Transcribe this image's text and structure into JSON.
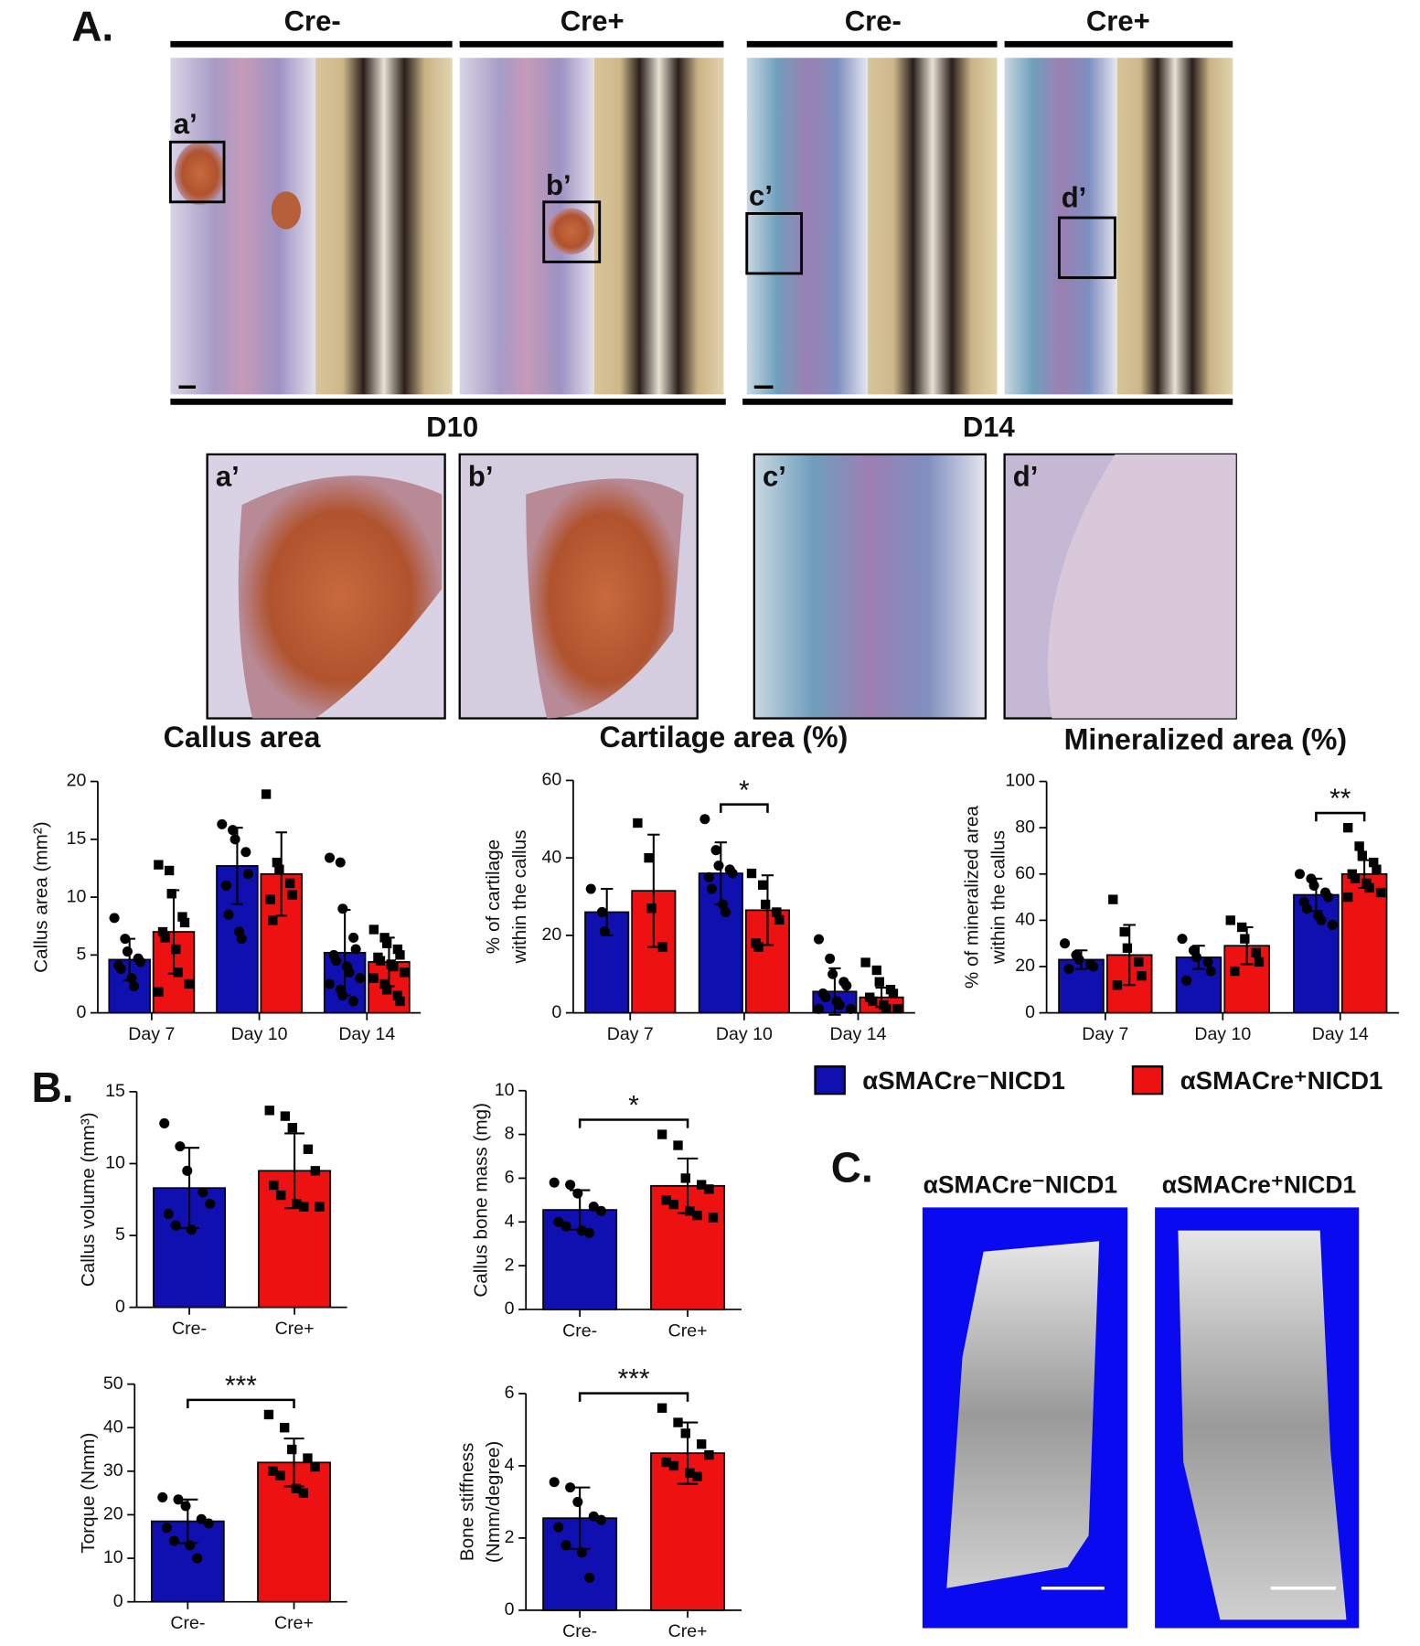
{
  "figure": {
    "panel_labels": [
      "A.",
      "B.",
      "C."
    ],
    "group_headers": [
      "Cre-",
      "Cre+",
      "Cre-",
      "Cre+"
    ],
    "timepoints": [
      "D10",
      "D14"
    ],
    "box_labels": [
      "a’",
      "b’",
      "c’",
      "d’"
    ],
    "legend": [
      {
        "name": "αSMACre⁻NICD1",
        "color": "#1010b0"
      },
      {
        "name": "αSMACre⁺NICD1",
        "color": "#ee1111"
      }
    ]
  },
  "chart_data": [
    {
      "type": "bar",
      "title": "Callus area",
      "ylabel": "Callus area (mm²)",
      "categories": [
        "Day 7",
        "Day 10",
        "Day 14"
      ],
      "ylim": [
        0,
        20
      ],
      "yticks": [
        0,
        5,
        10,
        15,
        20
      ],
      "series": [
        {
          "color": "#1010b0",
          "marker": "circle",
          "values": [
            4.6,
            12.7,
            5.2
          ],
          "errors": [
            1.8,
            3.3,
            3.7
          ],
          "points": [
            [
              8.2,
              6.4,
              5.3,
              4.7,
              4.4,
              4.1,
              3.8,
              3.0,
              2.3
            ],
            [
              16.3,
              15.8,
              15.0,
              13.9,
              12.0,
              11.0,
              8.5,
              7.0,
              6.4
            ],
            [
              13.4,
              13.0,
              9.0,
              6.5,
              5.5,
              5.0,
              4.5,
              4.0,
              3.5,
              3.0,
              2.5,
              2.0,
              1.5,
              1.0
            ]
          ]
        },
        {
          "color": "#ee1111",
          "marker": "square",
          "values": [
            7.0,
            12.0,
            4.4
          ],
          "errors": [
            3.6,
            3.6,
            2.1
          ],
          "points": [
            [
              12.8,
              12.3,
              10.3,
              8.3,
              7.8,
              7.0,
              6.5,
              5.5,
              3.5,
              2.5,
              1.8
            ],
            [
              18.9,
              13.0,
              12.4,
              11.2,
              10.2,
              9.8,
              8.0
            ],
            [
              7.2,
              6.5,
              6.0,
              5.5,
              5.0,
              4.8,
              4.5,
              4.2,
              4.0,
              3.5,
              3.0,
              2.5,
              2.0,
              1.5,
              1.0
            ]
          ]
        }
      ]
    },
    {
      "type": "bar",
      "title": "Cartilage area (%)",
      "ylabel": [
        "% of cartilage",
        "within the callus"
      ],
      "categories": [
        "Day 7",
        "Day 10",
        "Day 14"
      ],
      "ylim": [
        0,
        60
      ],
      "yticks": [
        0,
        20,
        40,
        60
      ],
      "annotations": [
        {
          "text": "*",
          "category": 1
        }
      ],
      "series": [
        {
          "color": "#1010b0",
          "marker": "circle",
          "values": [
            26,
            36,
            5.5
          ],
          "errors": [
            6,
            8,
            6
          ],
          "points": [
            [
              32,
              26,
              21
            ],
            [
              50,
              42,
              38,
              37,
              36,
              35,
              32,
              28,
              26
            ],
            [
              19,
              14,
              10,
              8,
              7,
              5,
              4,
              3,
              2,
              1,
              1
            ]
          ]
        },
        {
          "color": "#ee1111",
          "marker": "square",
          "values": [
            31.5,
            26.5,
            4
          ],
          "errors": [
            14.5,
            9,
            2.5
          ],
          "points": [
            [
              49,
              40,
              27,
              17
            ],
            [
              36,
              33,
              28,
              26,
              24,
              18,
              17
            ],
            [
              13,
              11,
              8,
              6,
              5,
              4,
              3,
              2,
              1,
              1
            ]
          ]
        }
      ]
    },
    {
      "type": "bar",
      "title": "Mineralized area (%)",
      "ylabel": [
        "% of mineralized area",
        "within the callus"
      ],
      "categories": [
        "Day 7",
        "Day 10",
        "Day 14"
      ],
      "ylim": [
        0,
        100
      ],
      "yticks": [
        0,
        20,
        40,
        60,
        80,
        100
      ],
      "annotations": [
        {
          "text": "**",
          "category": 2
        }
      ],
      "series": [
        {
          "color": "#1010b0",
          "marker": "circle",
          "values": [
            23,
            24,
            51
          ],
          "errors": [
            4,
            5,
            7
          ],
          "points": [
            [
              30,
              25,
              23,
              21,
              20,
              19
            ],
            [
              32,
              27,
              24,
              22,
              18,
              14
            ],
            [
              60,
              58,
              55,
              52,
              50,
              48,
              45,
              42,
              40,
              38
            ]
          ]
        },
        {
          "color": "#ee1111",
          "marker": "square",
          "values": [
            25,
            29,
            60
          ],
          "errors": [
            13,
            8,
            6
          ],
          "points": [
            [
              49,
              35,
              28,
              22,
              16,
              12
            ],
            [
              40,
              37,
              32,
              26,
              22,
              18
            ],
            [
              80,
              72,
              68,
              65,
              62,
              60,
              58,
              56,
              54,
              52,
              50
            ]
          ]
        }
      ]
    },
    {
      "type": "bar",
      "ylabel": "Callus volume (mm³)",
      "categories": [
        "Cre-",
        "Cre+"
      ],
      "ylim": [
        0,
        15
      ],
      "yticks": [
        0,
        5,
        10,
        15
      ],
      "colors": [
        "#1010b0",
        "#ee1111"
      ],
      "markers": [
        "circle",
        "square"
      ],
      "values": [
        8.3,
        9.5
      ],
      "errors": [
        2.8,
        2.6
      ],
      "points": [
        [
          12.8,
          11.2,
          9.5,
          8.0,
          7.2,
          6.5,
          5.7,
          5.4
        ],
        [
          13.7,
          13.3,
          12.5,
          11.0,
          9.5,
          8.5,
          7.8,
          7.2,
          7.0,
          7.0
        ]
      ]
    },
    {
      "type": "bar",
      "ylabel": "Callus bone mass (mg)",
      "categories": [
        "Cre-",
        "Cre+"
      ],
      "ylim": [
        0,
        10
      ],
      "yticks": [
        0,
        2,
        4,
        6,
        8,
        10
      ],
      "annotations": [
        {
          "text": "*"
        }
      ],
      "colors": [
        "#1010b0",
        "#ee1111"
      ],
      "markers": [
        "circle",
        "square"
      ],
      "values": [
        4.55,
        5.65
      ],
      "errors": [
        0.9,
        1.25
      ],
      "points": [
        [
          5.8,
          5.7,
          5.3,
          4.7,
          4.5,
          4.0,
          3.8,
          3.6,
          3.5
        ],
        [
          8.0,
          7.5,
          6.0,
          5.7,
          5.5,
          5.0,
          4.8,
          4.5,
          4.3,
          4.2
        ]
      ]
    },
    {
      "type": "bar",
      "ylabel": "Torque (Nmm)",
      "categories": [
        "Cre-",
        "Cre+"
      ],
      "ylim": [
        0,
        50
      ],
      "yticks": [
        0,
        10,
        20,
        30,
        40,
        50
      ],
      "annotations": [
        {
          "text": "***"
        }
      ],
      "colors": [
        "#1010b0",
        "#ee1111"
      ],
      "markers": [
        "circle",
        "square"
      ],
      "values": [
        18.5,
        32
      ],
      "errors": [
        5,
        5.5
      ],
      "points": [
        [
          24,
          23.5,
          22,
          19,
          18,
          17,
          14,
          13,
          10
        ],
        [
          43,
          40,
          35,
          33,
          31,
          30,
          29,
          26,
          25
        ]
      ]
    },
    {
      "type": "bar",
      "ylabel": [
        "Bone stiffness",
        "(Nmm/degree)"
      ],
      "categories": [
        "Cre-",
        "Cre+"
      ],
      "ylim": [
        0,
        6
      ],
      "yticks": [
        0,
        2,
        4,
        6
      ],
      "annotations": [
        {
          "text": "***"
        }
      ],
      "colors": [
        "#1010b0",
        "#ee1111"
      ],
      "markers": [
        "circle",
        "square"
      ],
      "values": [
        2.55,
        4.35
      ],
      "errors": [
        0.85,
        0.85
      ],
      "points": [
        [
          3.55,
          3.4,
          3.0,
          2.6,
          2.5,
          2.3,
          1.8,
          1.6,
          0.9
        ],
        [
          5.6,
          5.2,
          4.9,
          4.6,
          4.3,
          4.1,
          4.0,
          3.8,
          3.7
        ]
      ]
    }
  ]
}
